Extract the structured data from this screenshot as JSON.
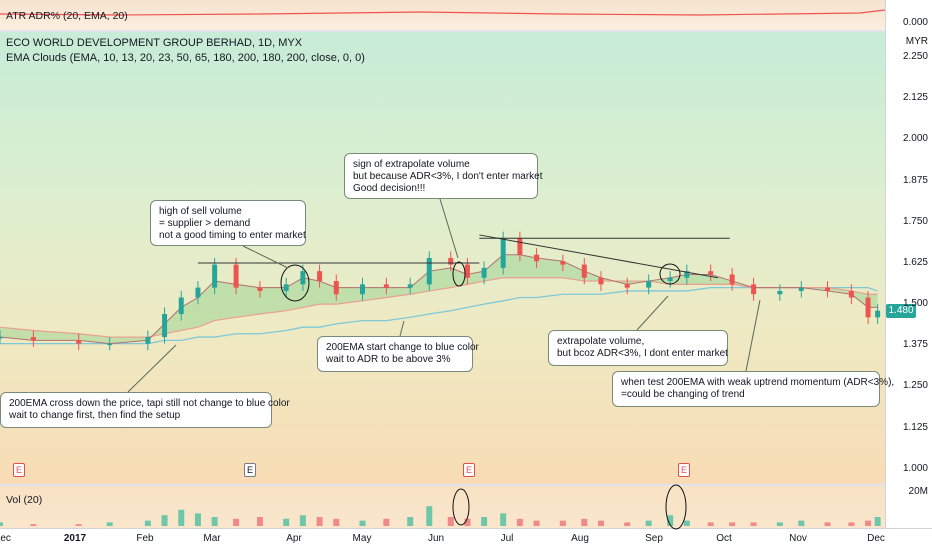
{
  "atr_pane": {
    "legend": "ATR ADR% (20, EMA, 20)",
    "axis_value": "0.000"
  },
  "main_pane": {
    "title": "ECO WORLD DEVELOPMENT GROUP BERHAD, 1D, MYX",
    "indicator": "EMA Clouds (EMA, 10, 13, 20, 23, 50, 65, 180, 200, 180, 200, close, 0, 0)",
    "currency": "MYR",
    "last_price": "1.480"
  },
  "volume_pane": {
    "legend": "Vol (20)",
    "axis_value": "20M"
  },
  "annotations": {
    "note1": "high of sell volume\n= supplier > demand\nnot a good timing to enter market",
    "note2": "sign of extrapolate volume\nbut because ADR<3%, I don't enter market\nGood decision!!!",
    "note3": "200EMA start change to blue color\nwait to ADR to be above 3%",
    "note4": "200EMA cross down the price, tapi still not change to blue color\nwait to change first, then find the setup",
    "note5": "extrapolate volume,\nbut bcoz ADR<3%, I dont enter market",
    "note6": "when test 200EMA with weak uptrend momentum (ADR<3%),\n=could be changing of trend"
  },
  "earnings_markers": [
    "E",
    "E",
    "E",
    "E"
  ],
  "chart_data": {
    "type": "candlestick",
    "symbol": "ECO WORLD DEVELOPMENT GROUP BERHAD",
    "interval": "1D",
    "exchange": "MYX",
    "y_axis": {
      "ticks": [
        2.25,
        2.125,
        2.0,
        1.875,
        1.75,
        1.625,
        1.5,
        1.375,
        1.25,
        1.125,
        1.0
      ],
      "tick_labels": [
        "2.250",
        "2.125",
        "2.000",
        "1.875",
        "1.750",
        "1.625",
        "1.500",
        "1.375",
        "1.250",
        "1.125",
        "1.000"
      ],
      "range": [
        0.96,
        2.32
      ],
      "unit": "MYR"
    },
    "x_axis": {
      "labels": [
        "Dec",
        "2017",
        "Feb",
        "Mar",
        "Apr",
        "May",
        "Jun",
        "Jul",
        "Aug",
        "Sep",
        "Oct",
        "Nov",
        "Dec"
      ],
      "range": [
        "2016-12-01",
        "2017-12-05"
      ]
    },
    "price_series": {
      "x": [
        "2016-12-01",
        "2016-12-15",
        "2017-01-03",
        "2017-01-16",
        "2017-02-01",
        "2017-02-08",
        "2017-02-15",
        "2017-02-22",
        "2017-03-01",
        "2017-03-10",
        "2017-03-20",
        "2017-03-31",
        "2017-04-07",
        "2017-04-14",
        "2017-04-21",
        "2017-05-02",
        "2017-05-12",
        "2017-05-22",
        "2017-05-30",
        "2017-06-08",
        "2017-06-15",
        "2017-06-22",
        "2017-06-30",
        "2017-07-07",
        "2017-07-14",
        "2017-07-25",
        "2017-08-03",
        "2017-08-10",
        "2017-08-21",
        "2017-08-30",
        "2017-09-08",
        "2017-09-15",
        "2017-09-25",
        "2017-10-04",
        "2017-10-13",
        "2017-10-24",
        "2017-11-02",
        "2017-11-13",
        "2017-11-23",
        "2017-11-30",
        "2017-12-04"
      ],
      "values": [
        1.4,
        1.39,
        1.38,
        1.38,
        1.4,
        1.47,
        1.52,
        1.55,
        1.62,
        1.55,
        1.54,
        1.56,
        1.6,
        1.57,
        1.53,
        1.56,
        1.55,
        1.56,
        1.64,
        1.62,
        1.58,
        1.61,
        1.7,
        1.65,
        1.63,
        1.62,
        1.58,
        1.56,
        1.55,
        1.57,
        1.58,
        1.6,
        1.59,
        1.56,
        1.53,
        1.54,
        1.55,
        1.54,
        1.52,
        1.46,
        1.48
      ]
    },
    "ema_fast": {
      "values": [
        1.4,
        1.39,
        1.39,
        1.38,
        1.39,
        1.44,
        1.49,
        1.52,
        1.57,
        1.56,
        1.55,
        1.55,
        1.58,
        1.57,
        1.55,
        1.55,
        1.55,
        1.55,
        1.6,
        1.61,
        1.59,
        1.6,
        1.65,
        1.65,
        1.64,
        1.63,
        1.6,
        1.58,
        1.56,
        1.57,
        1.58,
        1.59,
        1.59,
        1.57,
        1.55,
        1.55,
        1.55,
        1.54,
        1.53,
        1.49,
        1.49
      ]
    },
    "ema_slow_cloud": {
      "values": [
        1.43,
        1.42,
        1.41,
        1.4,
        1.4,
        1.41,
        1.42,
        1.43,
        1.45,
        1.46,
        1.47,
        1.48,
        1.49,
        1.5,
        1.5,
        1.51,
        1.52,
        1.53,
        1.54,
        1.55,
        1.56,
        1.57,
        1.58,
        1.58,
        1.58,
        1.58,
        1.57,
        1.57,
        1.57,
        1.57,
        1.56,
        1.56,
        1.56,
        1.56,
        1.55,
        1.55,
        1.55,
        1.55,
        1.54,
        1.53,
        1.53
      ]
    },
    "ema_200": {
      "values": [
        1.38,
        1.38,
        1.38,
        1.38,
        1.38,
        1.39,
        1.39,
        1.4,
        1.4,
        1.41,
        1.41,
        1.42,
        1.43,
        1.43,
        1.44,
        1.45,
        1.45,
        1.46,
        1.47,
        1.48,
        1.49,
        1.5,
        1.51,
        1.52,
        1.52,
        1.53,
        1.53,
        1.53,
        1.54,
        1.54,
        1.54,
        1.54,
        1.55,
        1.55,
        1.55,
        1.55,
        1.55,
        1.55,
        1.55,
        1.55,
        1.54
      ]
    },
    "resistance_lines": [
      {
        "from": "2017-02-22",
        "to": "2017-06-20",
        "value": 1.625
      },
      {
        "from": "2017-06-20",
        "to": "2017-10-03",
        "value": 1.7
      }
    ],
    "trend_line": {
      "from_x": "2017-06-20",
      "from_y": 1.71,
      "to_x": "2017-09-28",
      "to_y": 1.58
    },
    "volume": {
      "values": [
        2,
        1,
        1,
        2,
        3,
        6,
        9,
        7,
        5,
        4,
        5,
        4,
        6,
        5,
        4,
        3,
        4,
        5,
        11,
        5,
        4,
        5,
        7,
        4,
        3,
        3,
        4,
        3,
        2,
        3,
        6,
        3,
        2,
        2,
        2,
        2,
        3,
        2,
        2,
        3,
        5
      ],
      "unit": "M",
      "axis_label": "20M"
    }
  }
}
